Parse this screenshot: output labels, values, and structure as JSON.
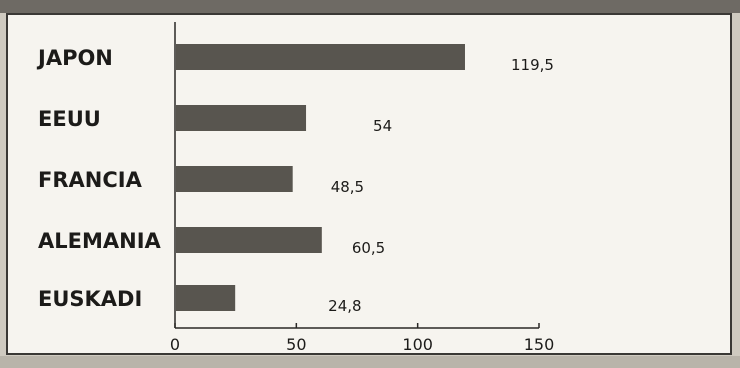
{
  "chart_data": {
    "type": "bar",
    "orientation": "horizontal",
    "categories": [
      "JAPON",
      "EEUU",
      "FRANCIA",
      "ALEMANIA",
      "EUSKADI"
    ],
    "values": [
      119.5,
      54,
      48.5,
      60.5,
      24.8
    ],
    "value_labels": [
      "119,5",
      "54",
      "48,5",
      "60,5",
      "24,8"
    ],
    "xlim": [
      0,
      150
    ],
    "xticks": [
      0,
      50,
      100,
      150
    ],
    "grid": false,
    "bar_color": "#58554f"
  }
}
